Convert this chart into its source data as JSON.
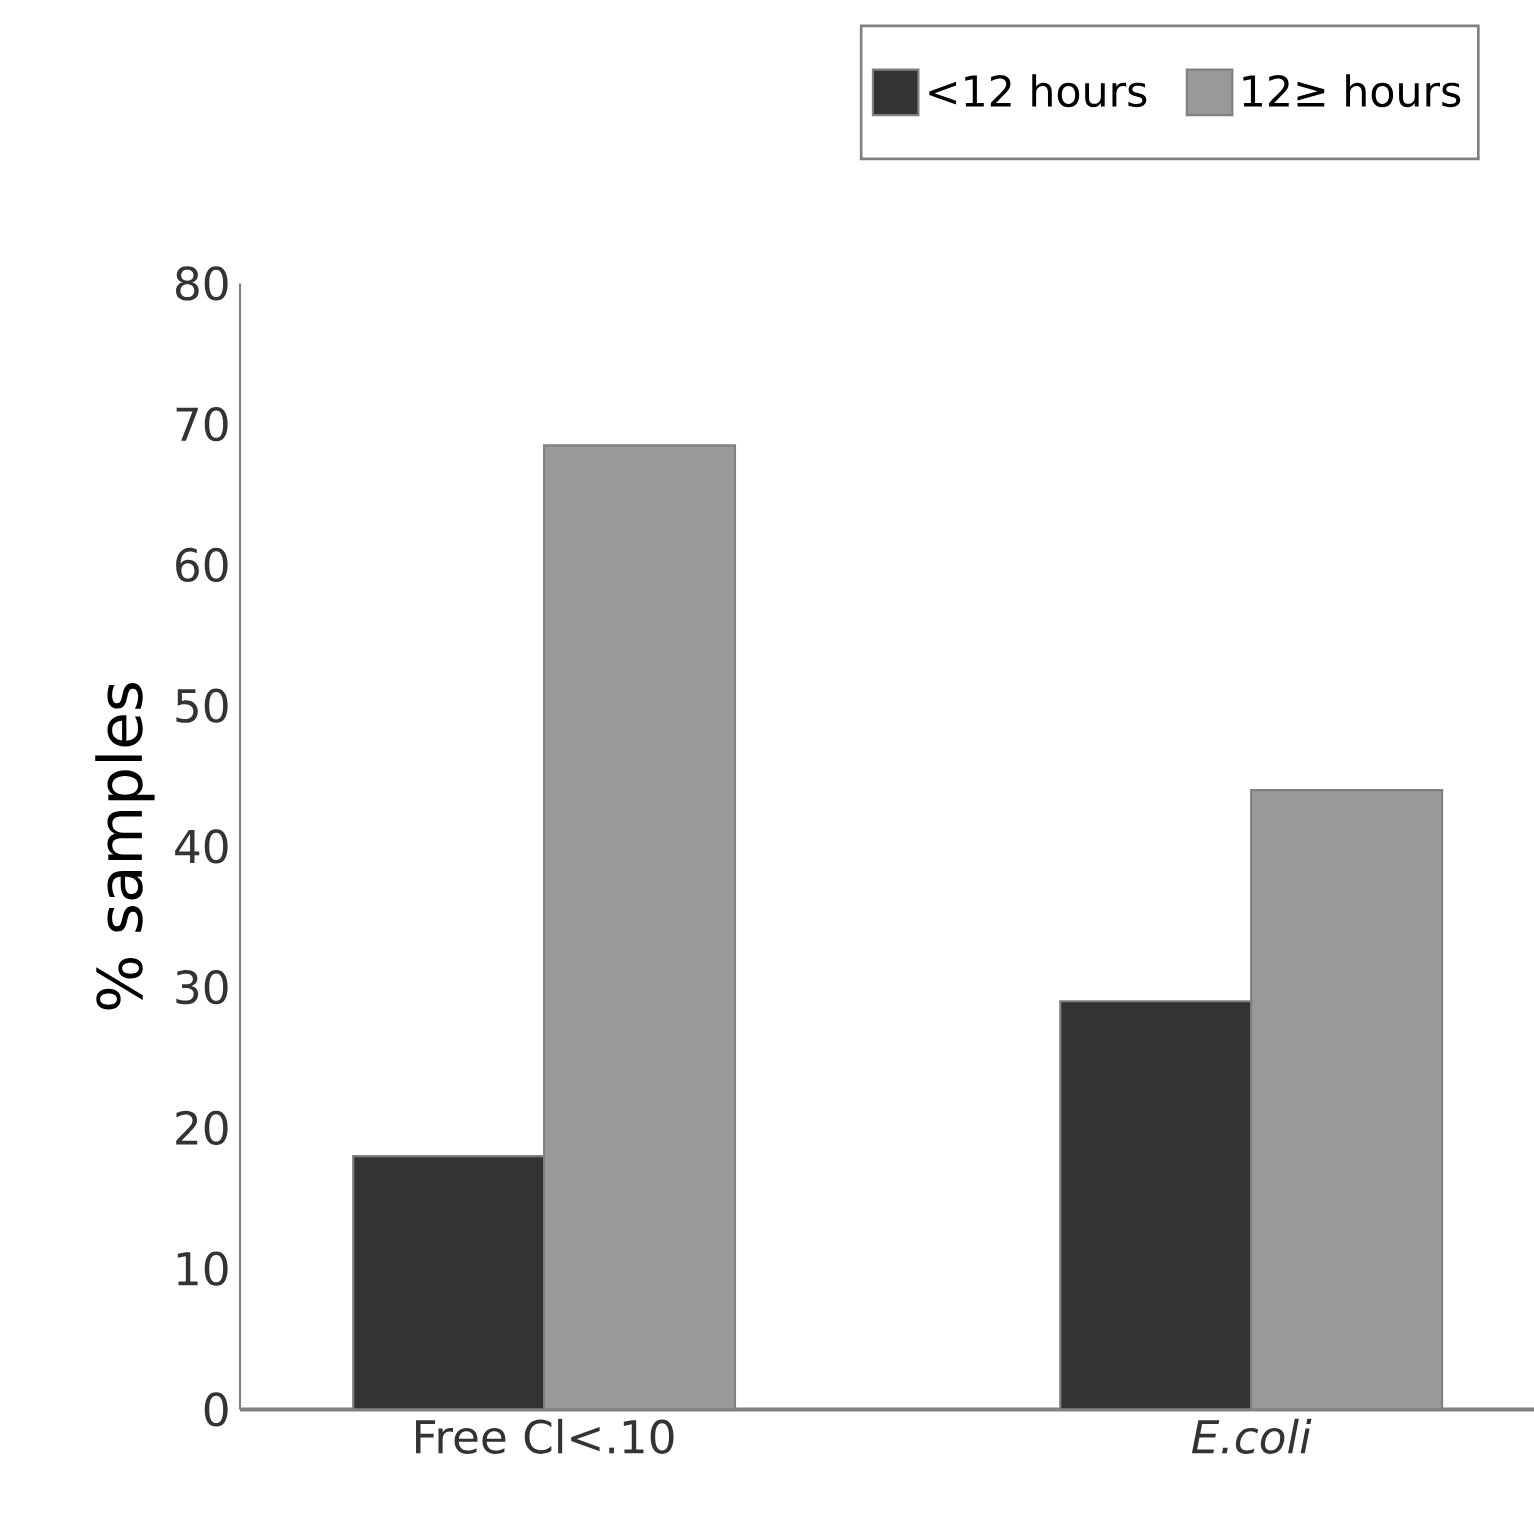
{
  "chart_data": {
    "type": "bar",
    "ylabel": "% samples",
    "categories": [
      "Free Cl<.10",
      "*E.coli*"
    ],
    "series": [
      {
        "name": "<12 hours",
        "color": "#333333",
        "values": [
          18,
          29
        ]
      },
      {
        "name": "12≥ hours",
        "color": "#999999",
        "values": [
          68.5,
          44
        ]
      }
    ],
    "ylim": [
      0,
      80
    ],
    "yticks": [
      0,
      10,
      20,
      30,
      40,
      50,
      60,
      70,
      80
    ],
    "legend": "top right"
  }
}
